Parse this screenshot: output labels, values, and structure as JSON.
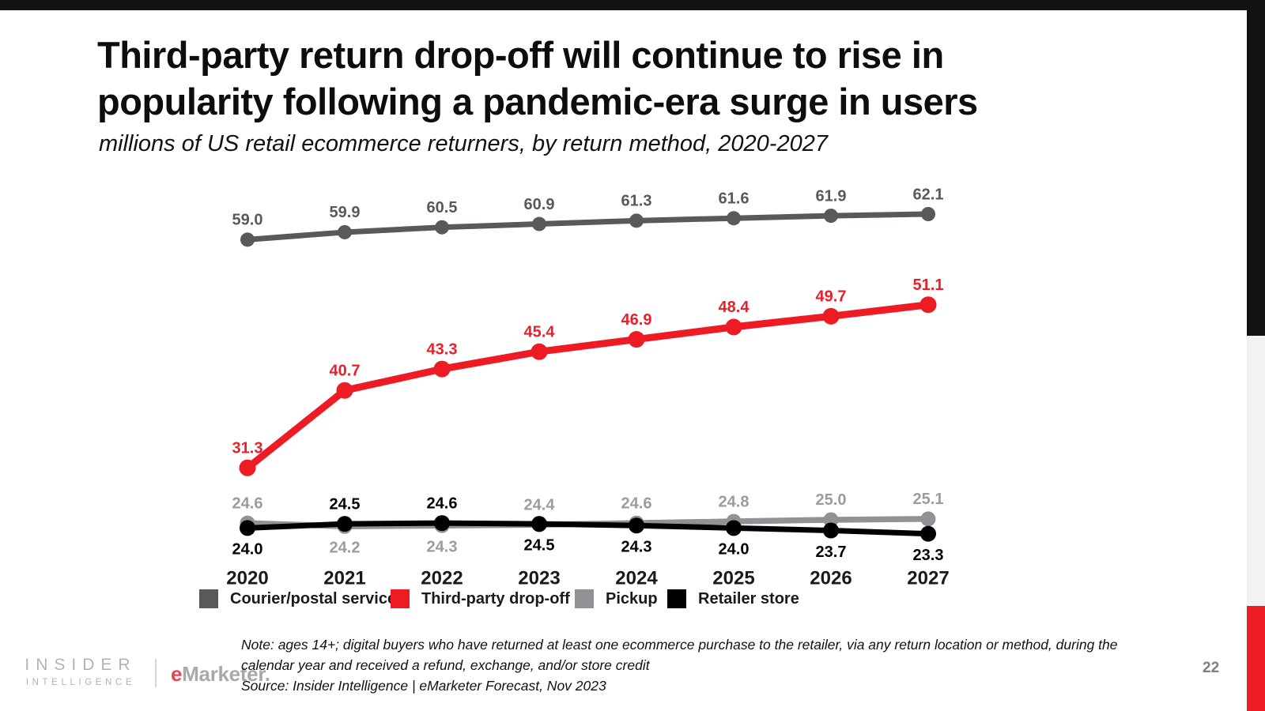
{
  "page": {
    "title_line1": "Third-party return drop-off will continue to rise in",
    "title_line2": "popularity following a pandemic-era surge in users",
    "subtitle": "millions of US retail ecommerce returners, by return method, 2020-2027",
    "page_number": "22"
  },
  "branding": {
    "insider_line1": "INSIDER",
    "insider_line2": "INTELLIGENCE",
    "emarketer_e": "e",
    "emarketer_rest": "Marketer."
  },
  "footnote": {
    "note_line1": "Note: ages 14+; digital buyers who have returned at least one ecommerce purchase to the retailer, via any return location or method, during the",
    "note_line2": "calendar year and received a refund, exchange, and/or store credit",
    "source": "Source: Insider Intelligence | eMarketer Forecast, Nov 2023"
  },
  "accent_colors": {
    "top_bar": "#121212",
    "right_black": "#121212",
    "right_gray": "#f2f2f2",
    "right_red": "#ed1c24"
  },
  "chart_data": {
    "type": "line",
    "title": "millions of US retail ecommerce returners, by return method, 2020-2027",
    "x": [
      2020,
      2021,
      2022,
      2023,
      2024,
      2025,
      2026,
      2027
    ],
    "ylim": [
      20,
      65
    ],
    "grid": false,
    "legend_position": "bottom",
    "series": [
      {
        "name": "Courier/postal service",
        "color": "#58595b",
        "label_color": "#58595b",
        "values": [
          59.0,
          59.9,
          60.5,
          60.9,
          61.3,
          61.6,
          61.9,
          62.1
        ],
        "label_side": [
          "above",
          "above",
          "above",
          "above",
          "above",
          "above",
          "above",
          "above"
        ]
      },
      {
        "name": "Third-party drop-off",
        "color": "#ed1c24",
        "label_color": "#e8202a",
        "values": [
          31.3,
          40.7,
          43.3,
          45.4,
          46.9,
          48.4,
          49.7,
          51.1
        ],
        "label_side": [
          "above",
          "above",
          "above",
          "above",
          "above",
          "above",
          "above",
          "above"
        ]
      },
      {
        "name": "Pickup",
        "color": "#909295",
        "label_color": "#9c9c9e",
        "values": [
          24.6,
          24.2,
          24.3,
          24.4,
          24.6,
          24.8,
          25.0,
          25.1
        ],
        "label_side": [
          "above",
          "below",
          "below",
          "above",
          "above",
          "above",
          "above",
          "above"
        ]
      },
      {
        "name": "Retailer store",
        "color": "#000000",
        "label_color": "#000000",
        "values": [
          24.0,
          24.5,
          24.6,
          24.5,
          24.3,
          24.0,
          23.7,
          23.3
        ],
        "label_side": [
          "below",
          "above",
          "above",
          "below",
          "below",
          "below",
          "below",
          "below"
        ]
      }
    ]
  }
}
